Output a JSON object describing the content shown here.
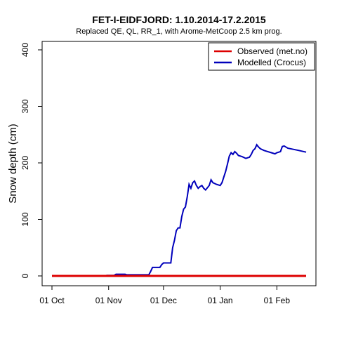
{
  "chart_data": {
    "type": "line",
    "title": "FET-I-EIDFJORD: 1.10.2014-17.2.2015",
    "subtitle": "Replaced QE, QL, RR_1,  with Arome-MetCoop 2.5 km prog.",
    "xlabel": "",
    "ylabel": "Snow depth (cm)",
    "ylim": [
      0,
      400
    ],
    "xlim": [
      "2014-10-01",
      "2015-02-17"
    ],
    "y_ticks": [
      0,
      100,
      200,
      300,
      400
    ],
    "x_ticks": [
      {
        "label": "01 Oct",
        "date": "2014-10-01"
      },
      {
        "label": "01 Nov",
        "date": "2014-11-01"
      },
      {
        "label": "01 Dec",
        "date": "2014-12-01"
      },
      {
        "label": "01 Jan",
        "date": "2015-01-01"
      },
      {
        "label": "01 Feb",
        "date": "2015-02-01"
      }
    ],
    "legend_position": "top-right",
    "series": [
      {
        "name": "Observed (met.no)",
        "color": "#dd0000",
        "points": [
          [
            "2014-10-01",
            0
          ],
          [
            "2015-02-17",
            0
          ]
        ]
      },
      {
        "name": "Modelled (Crocus)",
        "color": "#0000bb",
        "points": [
          [
            "2014-10-01",
            0
          ],
          [
            "2014-10-30",
            0
          ],
          [
            "2014-10-31",
            1
          ],
          [
            "2014-11-04",
            1
          ],
          [
            "2014-11-05",
            3
          ],
          [
            "2014-11-10",
            3
          ],
          [
            "2014-11-11",
            2
          ],
          [
            "2014-11-23",
            2
          ],
          [
            "2014-11-24",
            8
          ],
          [
            "2014-11-25",
            15
          ],
          [
            "2014-11-29",
            15
          ],
          [
            "2014-11-30",
            20
          ],
          [
            "2014-12-01",
            23
          ],
          [
            "2014-12-05",
            23
          ],
          [
            "2014-12-06",
            50
          ],
          [
            "2014-12-07",
            63
          ],
          [
            "2014-12-08",
            80
          ],
          [
            "2014-12-09",
            85
          ],
          [
            "2014-12-10",
            85
          ],
          [
            "2014-12-11",
            105
          ],
          [
            "2014-12-12",
            118
          ],
          [
            "2014-12-13",
            122
          ],
          [
            "2014-12-14",
            140
          ],
          [
            "2014-12-15",
            162
          ],
          [
            "2014-12-16",
            155
          ],
          [
            "2014-12-17",
            165
          ],
          [
            "2014-12-18",
            168
          ],
          [
            "2014-12-19",
            160
          ],
          [
            "2014-12-20",
            155
          ],
          [
            "2014-12-21",
            158
          ],
          [
            "2014-12-22",
            160
          ],
          [
            "2014-12-23",
            155
          ],
          [
            "2014-12-24",
            152
          ],
          [
            "2014-12-26",
            160
          ],
          [
            "2014-12-27",
            170
          ],
          [
            "2014-12-28",
            165
          ],
          [
            "2014-12-30",
            162
          ],
          [
            "2015-01-01",
            160
          ],
          [
            "2015-01-02",
            165
          ],
          [
            "2015-01-03",
            175
          ],
          [
            "2015-01-04",
            185
          ],
          [
            "2015-01-05",
            198
          ],
          [
            "2015-01-06",
            212
          ],
          [
            "2015-01-07",
            218
          ],
          [
            "2015-01-08",
            215
          ],
          [
            "2015-01-09",
            220
          ],
          [
            "2015-01-10",
            217
          ],
          [
            "2015-01-11",
            213
          ],
          [
            "2015-01-13",
            211
          ],
          [
            "2015-01-15",
            208
          ],
          [
            "2015-01-17",
            210
          ],
          [
            "2015-01-18",
            215
          ],
          [
            "2015-01-19",
            222
          ],
          [
            "2015-01-20",
            225
          ],
          [
            "2015-01-21",
            232
          ],
          [
            "2015-01-22",
            228
          ],
          [
            "2015-01-23",
            225
          ],
          [
            "2015-01-25",
            222
          ],
          [
            "2015-01-27",
            220
          ],
          [
            "2015-01-29",
            218
          ],
          [
            "2015-01-31",
            216
          ],
          [
            "2015-02-01",
            218
          ],
          [
            "2015-02-03",
            220
          ],
          [
            "2015-02-04",
            229
          ],
          [
            "2015-02-05",
            230
          ],
          [
            "2015-02-07",
            226
          ],
          [
            "2015-02-10",
            224
          ],
          [
            "2015-02-13",
            222
          ],
          [
            "2015-02-17",
            219
          ]
        ]
      }
    ]
  }
}
